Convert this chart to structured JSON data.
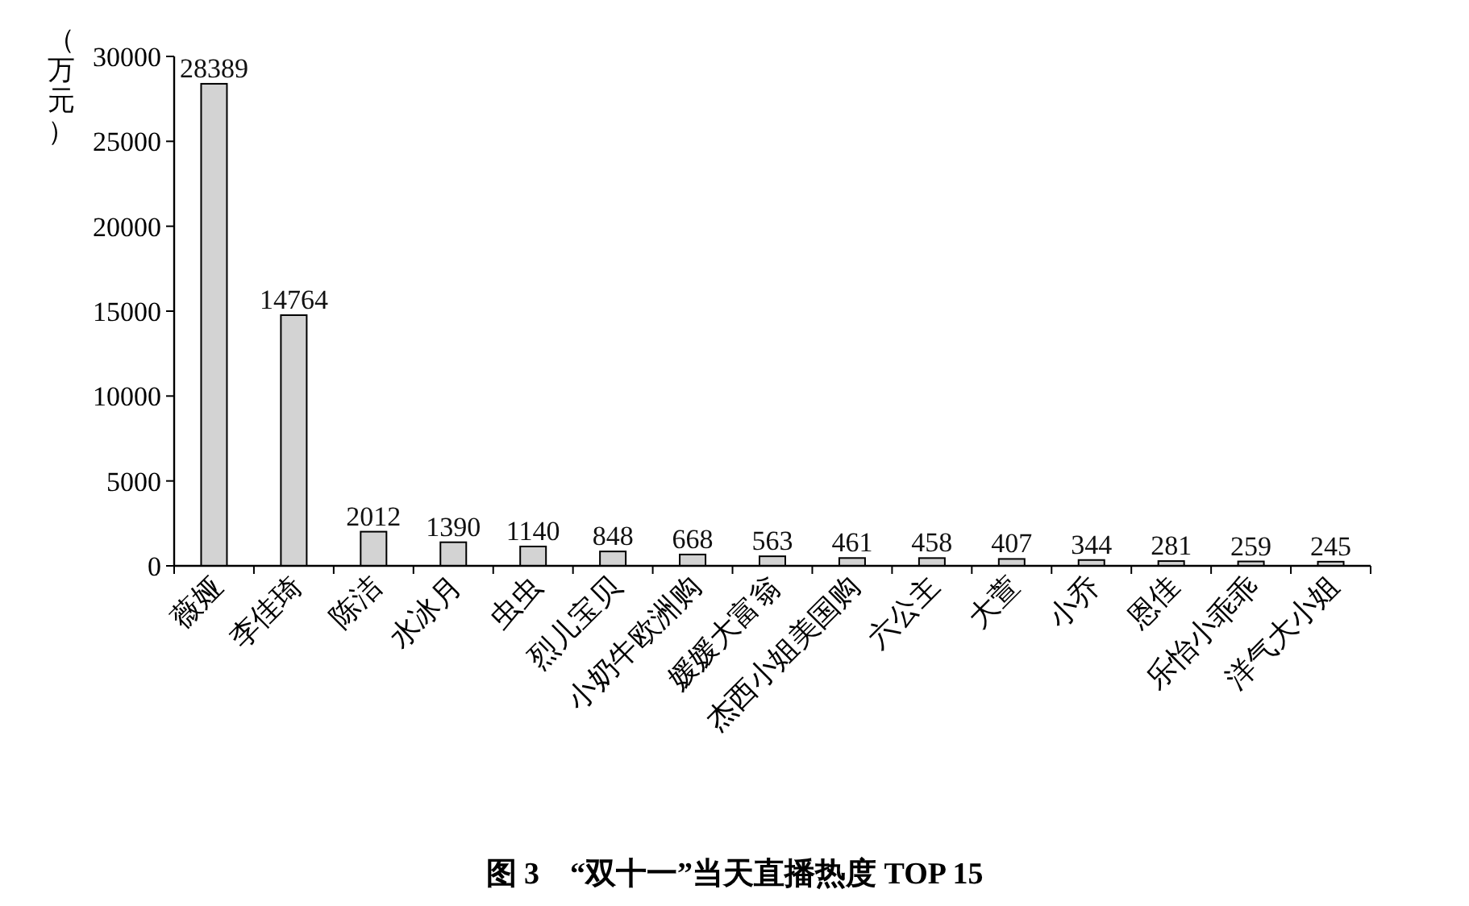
{
  "chart_data": {
    "type": "bar",
    "title": "图 3　“双十一”当天直播热度 TOP 15",
    "ylabel": "（万元）",
    "categories": [
      "薇娅",
      "李佳琦",
      "陈洁",
      "水冰月",
      "虫虫",
      "烈儿宝贝",
      "小奶牛欧洲购",
      "媛媛大富翁",
      "杰西小姐美国购",
      "六公主",
      "大萱",
      "小乔",
      "恩佳",
      "乐怡小乖乖",
      "洋气大小姐"
    ],
    "values": [
      28389,
      14764,
      2012,
      1390,
      1140,
      848,
      668,
      563,
      461,
      458,
      407,
      344,
      281,
      259,
      245
    ],
    "color": "#d3d3d3",
    "ylim": [
      0,
      30000
    ],
    "yticks": [
      0,
      5000,
      10000,
      15000,
      20000,
      25000,
      30000
    ],
    "data_labels": true
  }
}
